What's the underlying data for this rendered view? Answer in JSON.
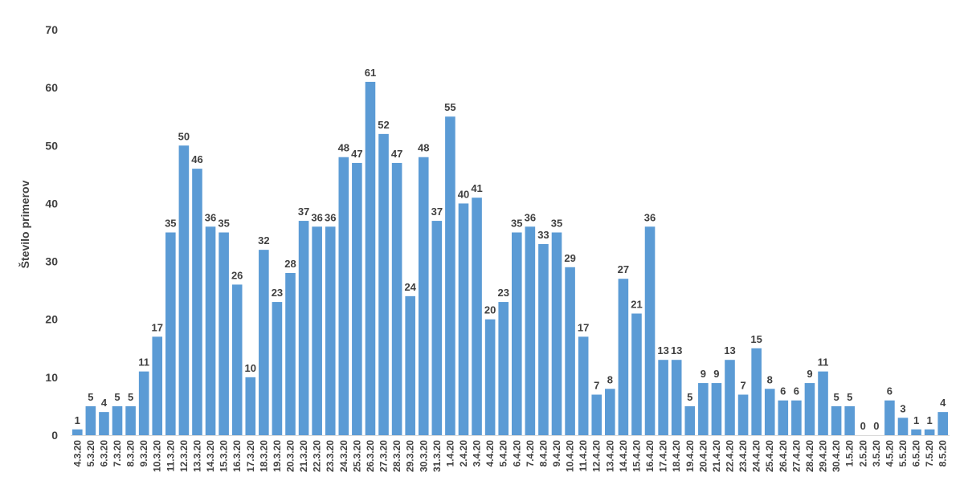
{
  "chart_data": {
    "type": "bar",
    "title": "",
    "xlabel": "",
    "ylabel": "Število primerov",
    "ylim": [
      0,
      70
    ],
    "yticks": [
      0,
      10,
      20,
      30,
      40,
      50,
      60,
      70
    ],
    "grid": false,
    "legend": "none",
    "bar_color": "#5b9bd5",
    "categories": [
      "4.3.20",
      "5.3.20",
      "6.3.20",
      "7.3.20",
      "8.3.20",
      "9.3.20",
      "10.3.20",
      "11.3.20",
      "12.3.20",
      "13.3.20",
      "14.3.20",
      "15.3.20",
      "16.3.20",
      "17.3.20",
      "18.3.20",
      "19.3.20",
      "20.3.20",
      "21.3.20",
      "22.3.20",
      "23.3.20",
      "24.3.20",
      "25.3.20",
      "26.3.20",
      "27.3.20",
      "28.3.20",
      "29.3.20",
      "30.3.20",
      "31.3.20",
      "1.4.20",
      "2.4.20",
      "3.4.20",
      "4.4.20",
      "5.4.20",
      "6.4.20",
      "7.4.20",
      "8.4.20",
      "9.4.20",
      "10.4.20",
      "11.4.20",
      "12.4.20",
      "13.4.20",
      "14.4.20",
      "15.4.20",
      "16.4.20",
      "17.4.20",
      "18.4.20",
      "19.4.20",
      "20.4.20",
      "21.4.20",
      "22.4.20",
      "23.4.20",
      "24.4.20",
      "25.4.20",
      "26.4.20",
      "27.4.20",
      "28.4.20",
      "29.4.20",
      "30.4.20",
      "1.5.20",
      "2.5.20",
      "3.5.20",
      "4.5.20",
      "5.5.20",
      "6.5.20",
      "7.5.20",
      "8.5.20"
    ],
    "values": [
      1,
      5,
      4,
      5,
      5,
      11,
      17,
      35,
      50,
      46,
      36,
      35,
      26,
      10,
      32,
      23,
      28,
      37,
      36,
      36,
      48,
      47,
      61,
      52,
      47,
      24,
      48,
      37,
      55,
      40,
      41,
      20,
      23,
      35,
      36,
      33,
      35,
      29,
      17,
      7,
      8,
      27,
      21,
      36,
      13,
      13,
      5,
      9,
      9,
      13,
      7,
      15,
      8,
      6,
      6,
      9,
      11,
      5,
      5,
      0,
      0,
      6,
      3,
      1,
      1,
      4
    ]
  }
}
